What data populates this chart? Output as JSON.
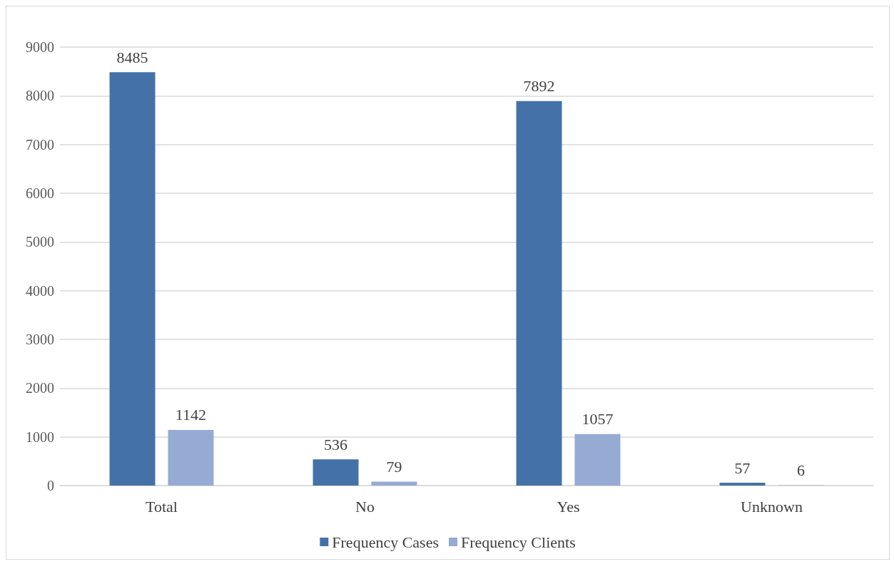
{
  "chart_data": {
    "type": "bar",
    "categories": [
      "Total",
      "No",
      "Yes",
      "Unknown"
    ],
    "series": [
      {
        "name": "Frequency Cases",
        "color": "#4472a8",
        "values": [
          8485,
          536,
          7892,
          57
        ]
      },
      {
        "name": "Frequency Clients",
        "color": "#95abd3",
        "values": [
          1142,
          79,
          1057,
          6
        ]
      }
    ],
    "ylim": [
      0,
      9000
    ],
    "yticks": [
      0,
      1000,
      2000,
      3000,
      4000,
      5000,
      6000,
      7000,
      8000,
      9000
    ],
    "grid": "y",
    "legend": "bottom",
    "data_labels": true
  }
}
